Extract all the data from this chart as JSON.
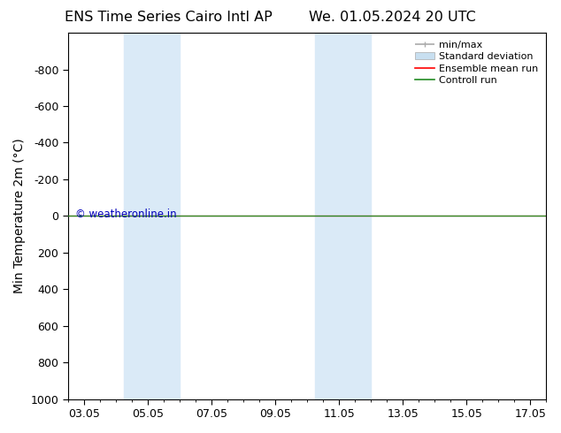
{
  "title_left": "ENS Time Series Cairo Intl AP",
  "title_right": "We. 01.05.2024 20 UTC",
  "ylabel": "Min Temperature 2m (°C)",
  "ylim_top": -1000,
  "ylim_bottom": 1000,
  "yticks": [
    -800,
    -600,
    -400,
    -200,
    0,
    200,
    400,
    600,
    800,
    1000
  ],
  "xticks_labels": [
    "03.05",
    "05.05",
    "07.05",
    "09.05",
    "11.05",
    "13.05",
    "15.05",
    "17.05"
  ],
  "xticks_pos": [
    0,
    2,
    4,
    6,
    8,
    10,
    12,
    14
  ],
  "xlim": [
    -0.5,
    14.5
  ],
  "shaded_bands": [
    {
      "x_start": 1.25,
      "x_end": 3.0
    },
    {
      "x_start": 7.25,
      "x_end": 9.0
    }
  ],
  "hline_y": 0,
  "hline_color_ensemble": "#ff0000",
  "hline_color_control": "#228B22",
  "watermark": "© weatheronline.in",
  "watermark_color": "#0000bb",
  "background_color": "#ffffff",
  "plot_bg_color": "#ffffff",
  "shade_color": "#daeaf7",
  "legend_minmax_color": "#aaaaaa",
  "legend_stddev_facecolor": "#c8dff0",
  "legend_stddev_edgecolor": "#aaaaaa",
  "title_fontsize": 11.5,
  "tick_fontsize": 9,
  "ylabel_fontsize": 10,
  "watermark_fontsize": 8.5
}
